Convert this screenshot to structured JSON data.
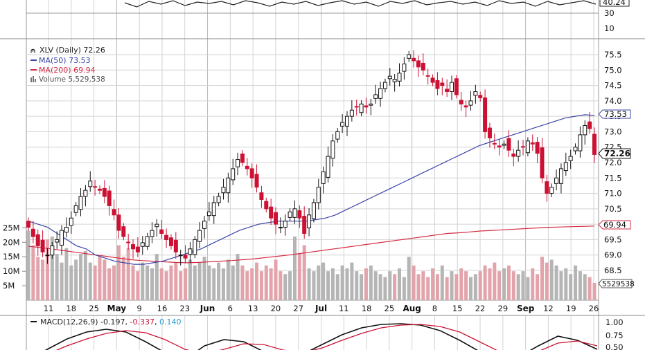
{
  "chart_data": [
    {
      "type": "line",
      "panel": "rsi",
      "visible_ticks": [
        30,
        10
      ],
      "top_value_label": "40.24"
    },
    {
      "type": "candlestick",
      "panel": "price",
      "legend": {
        "symbol_label": "XLV (Daily) 72.26",
        "ma50_label": "MA(50) 73.53",
        "ma200_label": "MA(200) 69.94",
        "volume_label": "Volume 5,529,538"
      },
      "ylim": [
        68.0,
        76.0
      ],
      "price_ticks": [
        "75.5",
        "75.0",
        "74.5",
        "74.0",
        "73.5",
        "73.0",
        "72.5",
        "72.0",
        "71.5",
        "71.0",
        "70.5",
        "70.0",
        "69.5",
        "69.0",
        "68.5"
      ],
      "volume_ticks": [
        "25M",
        "20M",
        "15M",
        "10M",
        "5M"
      ],
      "volume_max": 27,
      "x_labels": [
        {
          "label": "11",
          "bold": false
        },
        {
          "label": "18",
          "bold": false
        },
        {
          "label": "25",
          "bold": false
        },
        {
          "label": "May",
          "bold": true
        },
        {
          "label": "9",
          "bold": false
        },
        {
          "label": "16",
          "bold": false
        },
        {
          "label": "23",
          "bold": false
        },
        {
          "label": "Jun",
          "bold": true
        },
        {
          "label": "6",
          "bold": false
        },
        {
          "label": "13",
          "bold": false
        },
        {
          "label": "20",
          "bold": false
        },
        {
          "label": "27",
          "bold": false
        },
        {
          "label": "Jul",
          "bold": true
        },
        {
          "label": "11",
          "bold": false
        },
        {
          "label": "18",
          "bold": false
        },
        {
          "label": "25",
          "bold": false
        },
        {
          "label": "Aug",
          "bold": true
        },
        {
          "label": "8",
          "bold": false
        },
        {
          "label": "15",
          "bold": false
        },
        {
          "label": "22",
          "bold": false
        },
        {
          "label": "29",
          "bold": false
        },
        {
          "label": "Sep",
          "bold": true
        },
        {
          "label": "12",
          "bold": false
        },
        {
          "label": "19",
          "bold": false
        },
        {
          "label": "26",
          "bold": false
        }
      ],
      "badges": {
        "ma50": "73.53",
        "last": "72.26",
        "ma200": "69.94",
        "volume": "5529538"
      },
      "closes": [
        69.9,
        69.6,
        69.3,
        69.1,
        69.0,
        69.3,
        69.5,
        69.8,
        69.9,
        70.2,
        70.6,
        70.9,
        71.1,
        71.4,
        71.2,
        71.1,
        70.9,
        70.6,
        70.3,
        69.8,
        69.6,
        69.4,
        69.2,
        69.1,
        69.4,
        69.6,
        69.8,
        70.0,
        69.7,
        69.5,
        69.3,
        69.1,
        69.0,
        68.9,
        69.2,
        69.5,
        69.8,
        70.1,
        70.4,
        70.7,
        70.9,
        71.2,
        71.5,
        71.8,
        72.1,
        72.0,
        71.8,
        71.5,
        71.2,
        70.8,
        70.5,
        70.2,
        70.0,
        69.9,
        70.1,
        70.4,
        70.5,
        70.2,
        69.7,
        70.3,
        70.7,
        71.2,
        71.7,
        72.2,
        72.7,
        73.0,
        73.3,
        73.5,
        73.7,
        73.8,
        73.9,
        73.8,
        73.9,
        74.2,
        74.4,
        74.6,
        74.8,
        74.7,
        74.9,
        75.2,
        75.5,
        75.3,
        75.1,
        75.0,
        74.8,
        74.6,
        74.4,
        74.5,
        74.3,
        74.6,
        74.2,
        73.9,
        73.8,
        74.0,
        74.3,
        74.1,
        73.0,
        72.8,
        72.6,
        72.5,
        72.6,
        72.4,
        72.2,
        72.4,
        72.5,
        72.7,
        72.6,
        72.3,
        71.5,
        71.0,
        71.2,
        71.5,
        71.8,
        72.0,
        72.2,
        72.5,
        72.9,
        73.2,
        73.1,
        72.26
      ],
      "volumes": [
        24,
        19,
        15,
        14,
        21,
        22,
        16,
        13,
        18,
        12,
        14,
        16,
        17,
        13,
        12,
        15,
        14,
        11,
        12,
        19,
        15,
        18,
        12,
        10,
        13,
        12,
        11,
        16,
        11,
        10,
        12,
        13,
        10,
        11,
        14,
        12,
        13,
        15,
        12,
        11,
        13,
        11,
        14,
        12,
        16,
        12,
        10,
        11,
        13,
        10,
        12,
        11,
        14,
        10,
        9,
        10,
        22,
        16,
        19,
        11,
        10,
        12,
        13,
        10,
        11,
        9,
        12,
        11,
        13,
        10,
        9,
        11,
        12,
        10,
        9,
        8,
        10,
        9,
        11,
        8,
        15,
        12,
        9,
        10,
        8,
        11,
        9,
        12,
        8,
        10,
        9,
        11,
        10,
        8,
        9,
        10,
        12,
        11,
        13,
        10,
        11,
        12,
        10,
        9,
        10,
        8,
        11,
        9,
        15,
        13,
        14,
        12,
        10,
        11,
        9,
        12,
        10,
        9,
        8,
        6
      ],
      "ma50": [
        70.1,
        70.0,
        69.9,
        69.7,
        69.5,
        69.3,
        69.2,
        69.0,
        68.9,
        68.8,
        68.75,
        68.7,
        68.7,
        68.75,
        68.8,
        68.9,
        69.0,
        69.1,
        69.2,
        69.35,
        69.5,
        69.65,
        69.8,
        69.9,
        70.0,
        70.05,
        70.1,
        70.1,
        70.1,
        70.1,
        70.15,
        70.2,
        70.3,
        70.45,
        70.6,
        70.75,
        70.9,
        71.05,
        71.2,
        71.35,
        71.5,
        71.65,
        71.8,
        71.95,
        72.1,
        72.25,
        72.4,
        72.55,
        72.65,
        72.75,
        72.85,
        72.95,
        73.05,
        73.15,
        73.25,
        73.35,
        73.45,
        73.5,
        73.55,
        73.53
      ],
      "ma200": [
        69.28,
        69.25,
        69.2,
        69.15,
        69.1,
        69.05,
        69.0,
        68.95,
        68.9,
        68.85,
        68.82,
        68.8,
        68.78,
        68.76,
        68.75,
        68.76,
        68.78,
        68.8,
        68.82,
        68.85,
        68.88,
        68.92,
        68.96,
        69.0,
        69.05,
        69.1,
        69.15,
        69.2,
        69.25,
        69.3,
        69.35,
        69.4,
        69.45,
        69.5,
        69.55,
        69.6,
        69.65,
        69.7,
        69.72,
        69.75,
        69.78,
        69.8,
        69.82,
        69.84,
        69.86,
        69.88,
        69.9,
        69.91,
        69.92,
        69.93,
        69.94
      ]
    },
    {
      "type": "line",
      "panel": "macd",
      "legend_prefix": "MACD(12,26,9)",
      "macd_value": "-0.197",
      "signal_value": "-0.337",
      "hist_value": "0.140",
      "ticks": [
        "1.00",
        "0.75",
        "0.50"
      ]
    }
  ],
  "colors": {
    "up": "#111111",
    "down": "#cc1133",
    "ma50": "#3a45a6",
    "ma200": "#d42a43",
    "vol_up": "#b5b5b5",
    "vol_down": "#e3a3ab",
    "grid": "#d3d3d3"
  }
}
